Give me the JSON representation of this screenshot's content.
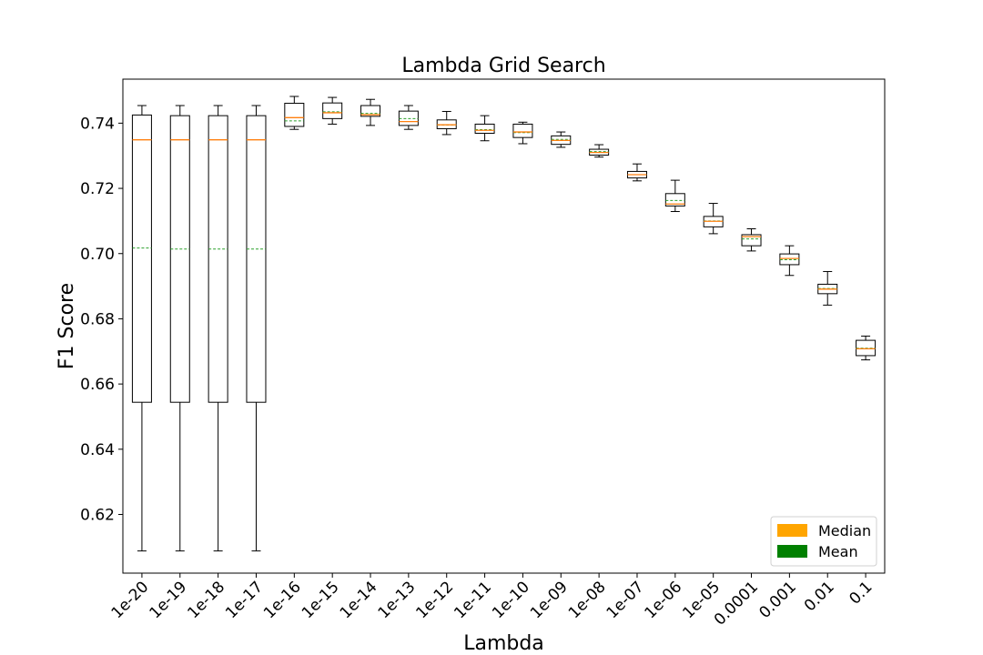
{
  "chart_data": {
    "type": "box",
    "title": "Lambda Grid Search",
    "xlabel": "Lambda",
    "ylabel": "F1 Score",
    "ylim": [
      0.602,
      0.7535
    ],
    "yticks": [
      0.62,
      0.64,
      0.66,
      0.68,
      0.7,
      0.72,
      0.74
    ],
    "ytick_labels": [
      "0.62",
      "0.64",
      "0.66",
      "0.68",
      "0.70",
      "0.72",
      "0.74"
    ],
    "grid": false,
    "legend_position": "bottom-right",
    "legend": [
      {
        "label": "Median",
        "color": "#ffa500"
      },
      {
        "label": "Mean",
        "color": "#008000"
      }
    ],
    "colors": {
      "box": "#000000",
      "median": "#ff7f0e",
      "mean": "#2ca02c",
      "legend_median": "#ffa500",
      "legend_mean": "#008000"
    },
    "categories": [
      "1e-20",
      "1e-19",
      "1e-18",
      "1e-17",
      "1e-16",
      "1e-15",
      "1e-14",
      "1e-13",
      "1e-12",
      "1e-11",
      "1e-10",
      "1e-09",
      "1e-08",
      "1e-07",
      "1e-06",
      "1e-05",
      "0.0001",
      "0.001",
      "0.01",
      "0.1"
    ],
    "boxes": [
      {
        "whislo": 0.6088,
        "q1": 0.6544,
        "med": 0.7349,
        "mean": 0.7017,
        "q3": 0.7425,
        "whishi": 0.7454
      },
      {
        "whislo": 0.6088,
        "q1": 0.6544,
        "med": 0.7349,
        "mean": 0.7014,
        "q3": 0.7423,
        "whishi": 0.7454
      },
      {
        "whislo": 0.6088,
        "q1": 0.6544,
        "med": 0.7349,
        "mean": 0.7014,
        "q3": 0.7423,
        "whishi": 0.7454
      },
      {
        "whislo": 0.6088,
        "q1": 0.6544,
        "med": 0.7349,
        "mean": 0.7014,
        "q3": 0.7423,
        "whishi": 0.7454
      },
      {
        "whislo": 0.7381,
        "q1": 0.739,
        "med": 0.7417,
        "mean": 0.7407,
        "q3": 0.7461,
        "whishi": 0.7482
      },
      {
        "whislo": 0.7397,
        "q1": 0.7414,
        "med": 0.7432,
        "mean": 0.7435,
        "q3": 0.7462,
        "whishi": 0.7479
      },
      {
        "whislo": 0.7393,
        "q1": 0.7421,
        "med": 0.7426,
        "mean": 0.743,
        "q3": 0.7454,
        "whishi": 0.7473
      },
      {
        "whislo": 0.7381,
        "q1": 0.7393,
        "med": 0.7405,
        "mean": 0.7414,
        "q3": 0.7437,
        "whishi": 0.7454
      },
      {
        "whislo": 0.7365,
        "q1": 0.7383,
        "med": 0.7395,
        "mean": 0.7394,
        "q3": 0.741,
        "whishi": 0.7436
      },
      {
        "whislo": 0.7346,
        "q1": 0.7369,
        "med": 0.7378,
        "mean": 0.738,
        "q3": 0.7397,
        "whishi": 0.7423
      },
      {
        "whislo": 0.7337,
        "q1": 0.7356,
        "med": 0.7373,
        "mean": 0.7371,
        "q3": 0.7397,
        "whishi": 0.7403
      },
      {
        "whislo": 0.7326,
        "q1": 0.7335,
        "med": 0.7347,
        "mean": 0.735,
        "q3": 0.7361,
        "whishi": 0.7373
      },
      {
        "whislo": 0.7296,
        "q1": 0.7302,
        "med": 0.731,
        "mean": 0.7313,
        "q3": 0.732,
        "whishi": 0.7334
      },
      {
        "whislo": 0.7223,
        "q1": 0.7232,
        "med": 0.7242,
        "mean": 0.7242,
        "q3": 0.7252,
        "whishi": 0.7275
      },
      {
        "whislo": 0.7129,
        "q1": 0.7146,
        "med": 0.7152,
        "mean": 0.7163,
        "q3": 0.7184,
        "whishi": 0.7225
      },
      {
        "whislo": 0.7061,
        "q1": 0.7082,
        "med": 0.7099,
        "mean": 0.71,
        "q3": 0.7114,
        "whishi": 0.7154
      },
      {
        "whislo": 0.7008,
        "q1": 0.7024,
        "med": 0.7052,
        "mean": 0.7045,
        "q3": 0.7058,
        "whishi": 0.7076
      },
      {
        "whislo": 0.6933,
        "q1": 0.6966,
        "med": 0.6985,
        "mean": 0.6981,
        "q3": 0.6999,
        "whishi": 0.7024
      },
      {
        "whislo": 0.6842,
        "q1": 0.6877,
        "med": 0.6891,
        "mean": 0.6893,
        "q3": 0.6906,
        "whishi": 0.6945
      },
      {
        "whislo": 0.6674,
        "q1": 0.6687,
        "med": 0.6708,
        "mean": 0.671,
        "q3": 0.6734,
        "whishi": 0.6747
      }
    ]
  }
}
